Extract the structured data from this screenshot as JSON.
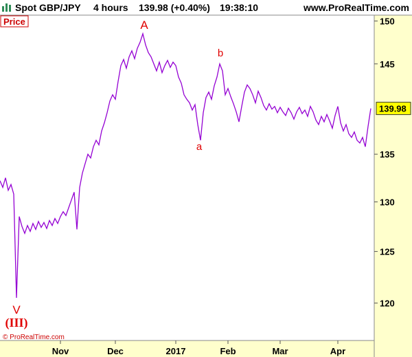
{
  "header": {
    "instrument": "Spot GBP/JPY",
    "timeframe": "4 hours",
    "quote": "139.98 (+0.40%)",
    "time": "19:38:10",
    "site": "www.ProRealTime.com"
  },
  "panel_label": "Price",
  "copyright": "© ProRealTime.com",
  "chart_data": {
    "type": "line",
    "log_scale": true,
    "color": "#9400d3",
    "series": [
      {
        "name": "Price",
        "color": "#9400d3",
        "values": [
          132.2,
          131.5,
          132.5,
          131.2,
          131.8,
          130.8,
          120.5,
          128.5,
          127.5,
          126.8,
          127.6,
          127.0,
          127.8,
          127.2,
          128.0,
          127.4,
          127.9,
          127.3,
          128.1,
          127.6,
          128.3,
          127.8,
          128.5,
          129.0,
          128.6,
          129.4,
          130.2,
          131.0,
          127.2,
          131.5,
          133.0,
          134.0,
          135.0,
          134.6,
          135.8,
          136.5,
          136.0,
          137.5,
          138.4,
          139.5,
          140.8,
          141.5,
          141.0,
          143.0,
          144.8,
          145.5,
          144.5,
          145.8,
          146.5,
          145.6,
          146.8,
          147.5,
          148.5,
          147.2,
          146.3,
          145.8,
          145.0,
          144.2,
          145.2,
          144.0,
          144.8,
          145.4,
          144.6,
          145.2,
          144.8,
          143.5,
          142.8,
          141.5,
          141.0,
          140.6,
          139.8,
          140.4,
          138.2,
          136.5,
          139.5,
          141.2,
          141.8,
          141.0,
          142.5,
          143.5,
          145.0,
          144.2,
          141.5,
          142.2,
          141.3,
          140.5,
          139.6,
          138.5,
          140.2,
          141.8,
          142.6,
          142.2,
          141.5,
          140.6,
          141.9,
          141.2,
          140.3,
          139.8,
          140.5,
          139.9,
          140.2,
          139.5,
          140.1,
          139.6,
          139.2,
          140.0,
          139.5,
          138.8,
          139.6,
          140.1,
          139.4,
          139.8,
          139.1,
          140.2,
          139.6,
          138.7,
          138.2,
          139.1,
          138.5,
          139.3,
          138.6,
          137.8,
          139.2,
          140.2,
          138.4,
          137.5,
          138.2,
          137.2,
          136.8,
          137.4,
          136.5,
          136.2,
          136.8,
          135.8,
          138.0,
          139.98
        ]
      }
    ],
    "xlim": [
      0,
      135
    ],
    "xticks": [
      {
        "value": 22,
        "label": "Nov"
      },
      {
        "value": 42,
        "label": "Dec"
      },
      {
        "value": 64,
        "label": "2017"
      },
      {
        "value": 83,
        "label": "Feb"
      },
      {
        "value": 102,
        "label": "Mar"
      },
      {
        "value": 123,
        "label": "Apr"
      }
    ],
    "ylim": [
      116.5,
      150.7
    ],
    "yticks": [
      120,
      125,
      130,
      135,
      145,
      150
    ],
    "annotations": [
      "A",
      "a",
      "b",
      "V",
      "(III)"
    ]
  }
}
